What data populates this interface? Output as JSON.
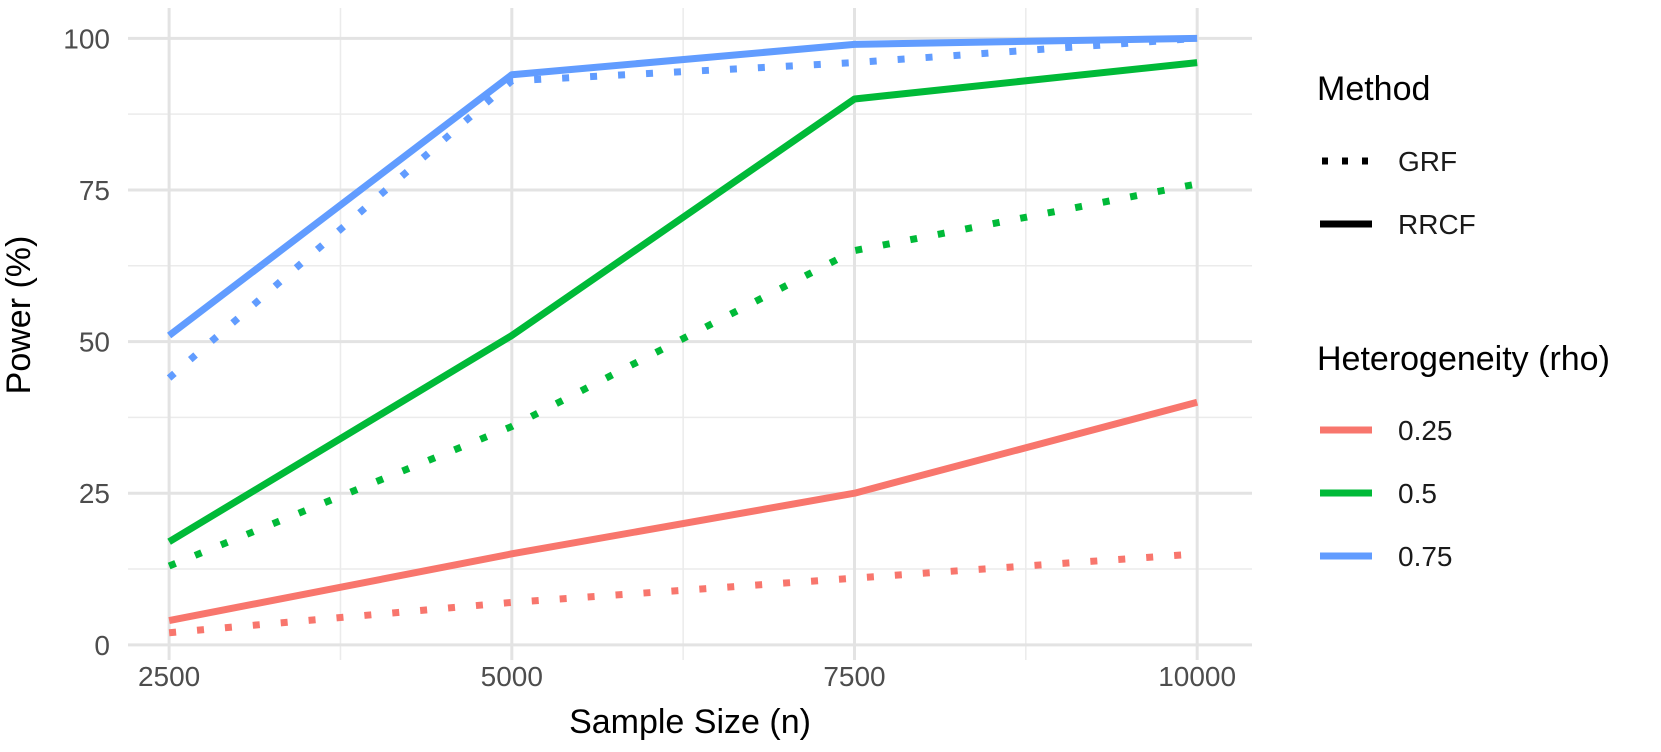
{
  "chart_data": {
    "type": "line",
    "title": "",
    "xlabel": "Sample Size (n)",
    "ylabel": "Power (%)",
    "x": [
      2500,
      5000,
      7500,
      10000
    ],
    "x_ticks": [
      "2500",
      "5000",
      "7500",
      "10000"
    ],
    "y_ticks": [
      "0",
      "25",
      "50",
      "75",
      "100"
    ],
    "xlim": [
      2200,
      10400
    ],
    "ylim": [
      -2.5,
      105
    ],
    "grid": true,
    "legend_position": "right",
    "series": [
      {
        "name": "0.25 RRCF",
        "rho": "0.25",
        "method": "RRCF",
        "color": "#F8766D",
        "values": [
          4,
          15,
          25,
          40
        ]
      },
      {
        "name": "0.25 GRF",
        "rho": "0.25",
        "method": "GRF",
        "color": "#F8766D",
        "values": [
          2,
          7,
          11,
          15
        ]
      },
      {
        "name": "0.5 RRCF",
        "rho": "0.5",
        "method": "RRCF",
        "color": "#00BA38",
        "values": [
          17,
          51,
          90,
          96
        ]
      },
      {
        "name": "0.5 GRF",
        "rho": "0.5",
        "method": "GRF",
        "color": "#00BA38",
        "values": [
          13,
          36,
          65,
          76
        ]
      },
      {
        "name": "0.75 RRCF",
        "rho": "0.75",
        "method": "RRCF",
        "color": "#619CFF",
        "values": [
          51,
          94,
          99,
          100
        ]
      },
      {
        "name": "0.75 GRF",
        "rho": "0.75",
        "method": "GRF",
        "color": "#619CFF",
        "values": [
          44,
          93,
          96,
          100
        ]
      }
    ],
    "legends": {
      "method": {
        "title": "Method",
        "items": [
          {
            "label": "GRF",
            "style": "dotted"
          },
          {
            "label": "RRCF",
            "style": "solid"
          }
        ]
      },
      "heterogeneity": {
        "title": "Heterogeneity (rho)",
        "items": [
          {
            "label": "0.25",
            "color": "#F8766D"
          },
          {
            "label": "0.5",
            "color": "#00BA38"
          },
          {
            "label": "0.75",
            "color": "#619CFF"
          }
        ]
      }
    }
  }
}
